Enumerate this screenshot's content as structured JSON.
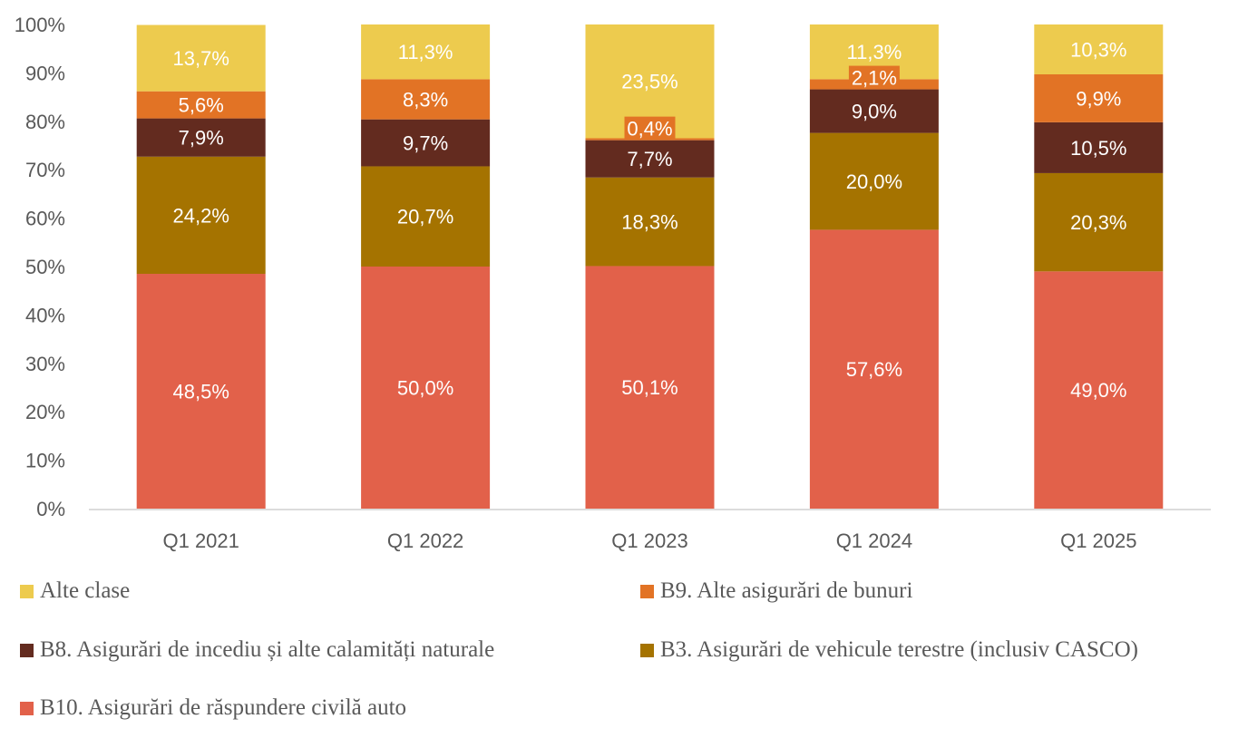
{
  "chart_data": {
    "type": "bar",
    "stacked": true,
    "normalized": true,
    "title": "",
    "xlabel": "",
    "ylabel": "",
    "ylim": [
      0,
      100
    ],
    "yticks": [
      "0%",
      "10%",
      "20%",
      "30%",
      "40%",
      "50%",
      "60%",
      "70%",
      "80%",
      "90%",
      "100%"
    ],
    "grid": false,
    "legend_position": "bottom",
    "categories": [
      "Q1 2021",
      "Q1 2022",
      "Q1 2023",
      "Q1 2024",
      "Q1 2025"
    ],
    "series": [
      {
        "name": "B10. Asigurări de răspundere civilă auto",
        "color": "#e2614a",
        "values": [
          48.5,
          50.0,
          50.1,
          57.6,
          49.0
        ],
        "labels": [
          "48,5%",
          "50,0%",
          "50,1%",
          "57,6%",
          "49,0%"
        ]
      },
      {
        "name": "B3. Asigurări de vehicule terestre (inclusiv CASCO)",
        "color": "#a57300",
        "values": [
          24.2,
          20.7,
          18.3,
          20.0,
          20.3
        ],
        "labels": [
          "24,2%",
          "20,7%",
          "18,3%",
          "20,0%",
          "20,3%"
        ]
      },
      {
        "name": "B8. Asigurări de incediu și alte calamități naturale",
        "color": "#632b1f",
        "values": [
          7.9,
          9.7,
          7.7,
          9.0,
          10.5
        ],
        "labels": [
          "7,9%",
          "9,7%",
          "7,7%",
          "9,0%",
          "10,5%"
        ]
      },
      {
        "name": "B9. Alte asigurări de bunuri",
        "color": "#e27325",
        "values": [
          5.6,
          8.3,
          0.4,
          2.1,
          9.9
        ],
        "labels": [
          "5,6%",
          "8,3%",
          "0,4%",
          "2,1%",
          "9,9%"
        ]
      },
      {
        "name": "Alte clase",
        "color": "#edcb4e",
        "values": [
          13.7,
          11.3,
          23.5,
          11.3,
          10.3
        ],
        "labels": [
          "13,7%",
          "11,3%",
          "23,5%",
          "11,3%",
          "10,3%"
        ]
      }
    ],
    "legend_order": [
      "Alte clase",
      "B9. Alte asigurări de bunuri",
      "B8. Asigurări de incediu și alte calamități naturale",
      "B3. Asigurări de vehicule terestre (inclusiv CASCO)",
      "B10. Asigurări de răspundere civilă auto"
    ]
  }
}
